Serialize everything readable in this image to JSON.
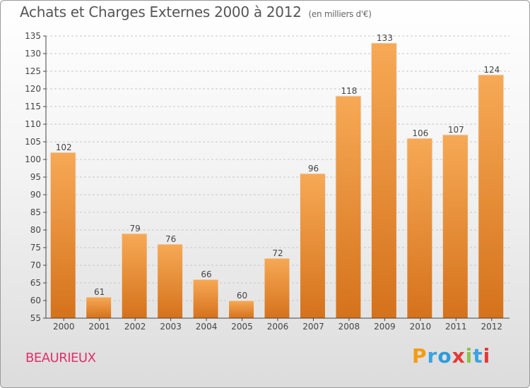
{
  "header": {
    "title": "Achats et Charges Externes 2000 à 2012",
    "subtitle": "(en milliers d'€)"
  },
  "commune": "BEAURIEUX",
  "logo": {
    "text": "Proxiti",
    "letter_colors": [
      "#f39c12",
      "#3aa3e0",
      "#2d9cdb",
      "#e53935",
      "#8bc34a",
      "#3aa3e0",
      "#e53935"
    ]
  },
  "colors": {
    "bar_top": "#f7a955",
    "bar_bottom": "#d5721c",
    "grid": "#c8c8c8",
    "axis": "#444444",
    "label_text": "#444444"
  },
  "chart_data": {
    "type": "bar",
    "categories": [
      "2000",
      "2001",
      "2002",
      "2003",
      "2004",
      "2005",
      "2006",
      "2007",
      "2008",
      "2009",
      "2010",
      "2011",
      "2012"
    ],
    "values": [
      102,
      61,
      79,
      76,
      66,
      60,
      72,
      96,
      118,
      133,
      106,
      107,
      124
    ],
    "ylim": [
      55,
      135
    ],
    "yticks": [
      55,
      60,
      65,
      70,
      75,
      80,
      85,
      90,
      95,
      100,
      105,
      110,
      115,
      120,
      125,
      130,
      135
    ],
    "grid": true,
    "title": "Achats et Charges Externes 2000 à 2012",
    "xlabel": "",
    "ylabel": ""
  }
}
